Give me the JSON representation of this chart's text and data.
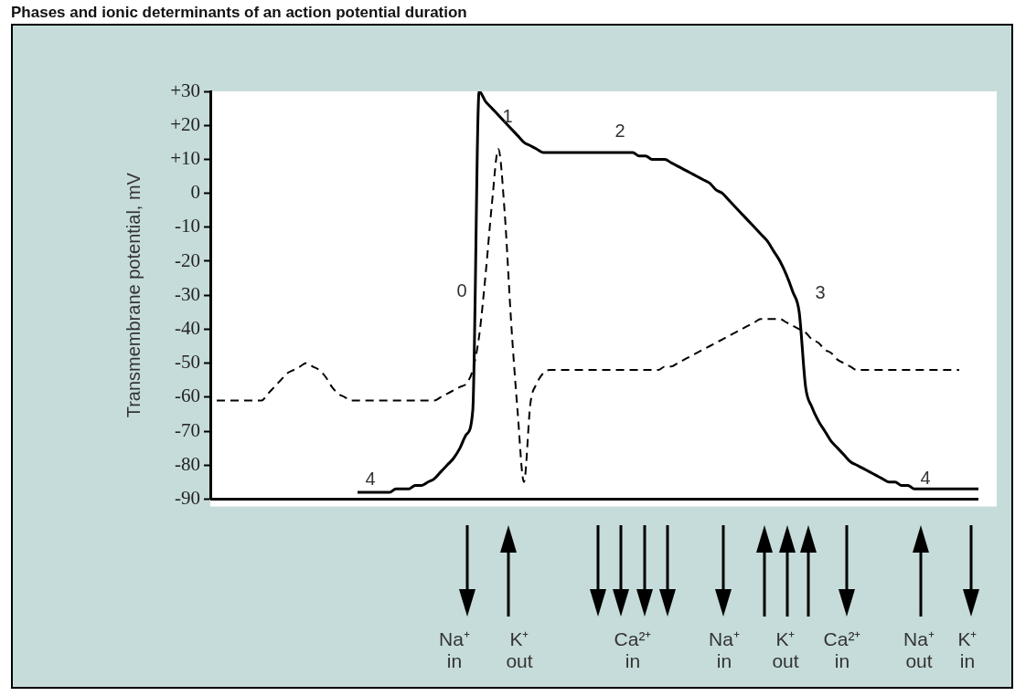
{
  "chart_data": {
    "type": "line",
    "title": "Phases and ionic determinants of an action potential duration",
    "ylabel": "Transmembrane potential, mV",
    "marker": "none",
    "categories": [
      null,
      null,
      null,
      null,
      null,
      null,
      null,
      null,
      null,
      null,
      null,
      null,
      null,
      null,
      null,
      null,
      null,
      null,
      null,
      null,
      null,
      null,
      null,
      null,
      null,
      null,
      null,
      null,
      null,
      null,
      null,
      null,
      null,
      null,
      null,
      null,
      null,
      null,
      null,
      null,
      null,
      null,
      null,
      null,
      null,
      null,
      null,
      null,
      null,
      null,
      null,
      null,
      null,
      null,
      null,
      null,
      null,
      null,
      null,
      null,
      null,
      null,
      null,
      null,
      null,
      null,
      null,
      null,
      null,
      null,
      null,
      null,
      null,
      null,
      null,
      null,
      null,
      null,
      null,
      null,
      null,
      null,
      null,
      null,
      null,
      null,
      null,
      null,
      null,
      null,
      null,
      null,
      null,
      null,
      null,
      null,
      null,
      null,
      null,
      null,
      null,
      null,
      null,
      null,
      null,
      null,
      null,
      null,
      null,
      null,
      null,
      null,
      null,
      null,
      null,
      null,
      null,
      null,
      null,
      null,
      null
    ],
    "series": [
      {
        "color": "#000000",
        "line_style": "solid",
        "values": [
          null,
          null,
          null,
          null,
          null,
          null,
          null,
          null,
          null,
          null,
          null,
          null,
          null,
          null,
          null,
          null,
          null,
          null,
          null,
          null,
          null,
          null,
          null,
          -88,
          -88,
          -88,
          -88,
          -88,
          -88,
          -87,
          -87,
          -87,
          -86,
          -86,
          -85,
          -84,
          -82,
          -80,
          -78,
          -75,
          -71,
          -64,
          30,
          27,
          25,
          23,
          21,
          19,
          17,
          15,
          14,
          13,
          12,
          12,
          12,
          12,
          12,
          12,
          12,
          12,
          12,
          12,
          12,
          12,
          12,
          12,
          12,
          11,
          11,
          10,
          10,
          10,
          9,
          8,
          7,
          6,
          5,
          4,
          3,
          1,
          0,
          -2,
          -4,
          -6,
          -8,
          -10,
          -12,
          -14,
          -17,
          -20,
          -24,
          -29,
          -35,
          -57,
          -63,
          -67,
          -70,
          -73,
          -75,
          -77,
          -79,
          -80,
          -81,
          -82,
          -83,
          -84,
          -85,
          -85,
          -86,
          -86,
          -87,
          -87,
          -87,
          -87,
          -87,
          -87,
          -87,
          -87,
          -87,
          -87,
          -87
        ]
      },
      {
        "color": "#000000",
        "line_style": "dashed",
        "values": [
          null,
          -61,
          -61,
          -61,
          -61,
          -61,
          -61,
          -61,
          -61,
          -59,
          -57,
          -55,
          -53,
          -52,
          -51,
          -50,
          -51,
          -52,
          -54,
          -57,
          -59,
          -60,
          -61,
          -61,
          -61,
          -61,
          -61,
          -61,
          -61,
          -61,
          -61,
          -61,
          -61,
          -61,
          -61,
          -61,
          -60,
          -59,
          -58,
          -57,
          -56,
          -52,
          -42,
          -24,
          -3,
          13,
          -6,
          -38,
          -64,
          -85,
          -62,
          -56,
          -53,
          -52,
          -52,
          -52,
          -52,
          -52,
          -52,
          -52,
          -52,
          -52,
          -52,
          -52,
          -52,
          -52,
          -52,
          -52,
          -52,
          -52,
          -52,
          -51,
          -51,
          -50,
          -49,
          -48,
          -47,
          -46,
          -45,
          -44,
          -43,
          -42,
          -41,
          -40,
          -39,
          -38,
          -37,
          -37,
          -37,
          -37,
          -38,
          -39,
          -40,
          -41,
          -43,
          -44,
          -46,
          -47,
          -49,
          -50,
          -51,
          -52,
          -52,
          -52,
          -52,
          -52,
          -52,
          -52,
          -52,
          -52,
          -52,
          -52,
          -52,
          -52,
          -52,
          -52,
          -52,
          -52,
          null,
          null,
          null
        ]
      }
    ],
    "ylim": [
      -90,
      30
    ],
    "yticks": [
      {
        "value": 30,
        "label": "+30"
      },
      {
        "value": 20,
        "label": "+20"
      },
      {
        "value": 10,
        "label": "+10"
      },
      0,
      -10,
      -20,
      -30,
      -40,
      -50,
      -60,
      -70,
      -80,
      -90
    ],
    "annotations": [
      "0",
      "1",
      "2",
      "3",
      "4",
      "4",
      "Na⁺\nin",
      "K⁺\nout",
      "Ca²⁺\nin",
      "Na⁺\nin",
      "K⁺\nout",
      "Ca²⁺\nin",
      "Na⁺\nout",
      "K⁺\nin"
    ]
  }
}
